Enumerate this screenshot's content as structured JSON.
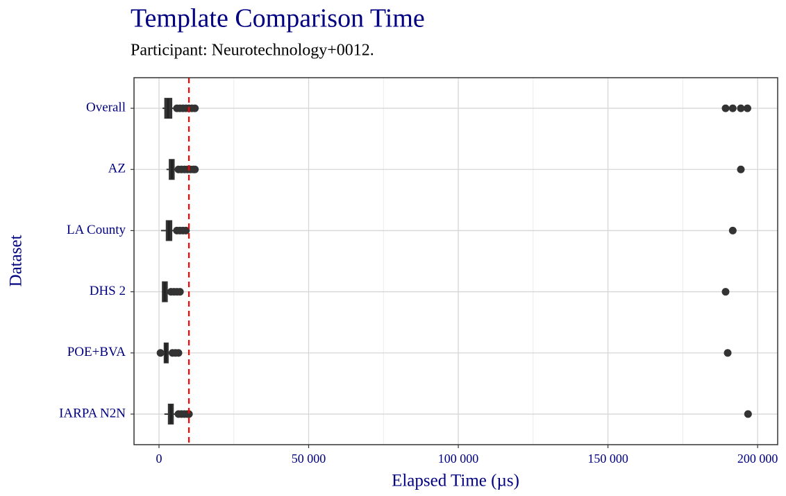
{
  "chart_data": {
    "type": "boxplot",
    "title": "Template Comparison Time",
    "subtitle": "Participant: Neurotechnology+0012.",
    "x_label": "Elapsed Time (µs)",
    "y_label": "Dataset",
    "categories": [
      "Overall",
      "AZ",
      "LA County",
      "DHS 2",
      "POE+BVA",
      "IARPA N2N"
    ],
    "boxes": [
      {
        "min": 1200,
        "q1": 2000,
        "median": 3000,
        "q3": 4200,
        "max": 5500,
        "outliers": [
          6000,
          7000,
          8000,
          9000,
          10000,
          11000,
          12000,
          189300,
          191700,
          194400,
          196600
        ]
      },
      {
        "min": 2500,
        "q1": 3500,
        "median": 4300,
        "q3": 5000,
        "max": 6000,
        "outliers": [
          6500,
          7500,
          8500,
          9500,
          10500,
          11500,
          12000,
          194400
        ]
      },
      {
        "min": 700,
        "q1": 2500,
        "median": 3300,
        "q3": 4200,
        "max": 5300,
        "outliers": [
          6000,
          7000,
          8000,
          9000,
          191700
        ]
      },
      {
        "min": 1000,
        "q1": 1200,
        "median": 1900,
        "q3": 2700,
        "max": 3700,
        "outliers": [
          4000,
          5000,
          6000,
          7000,
          189300
        ]
      },
      {
        "min": 300,
        "q1": 1800,
        "median": 2300,
        "q3": 3000,
        "max": 4000,
        "outliers": [
          500,
          4500,
          5500,
          6500,
          190000
        ]
      },
      {
        "min": 1800,
        "q1": 3200,
        "median": 4000,
        "q3": 4700,
        "max": 5600,
        "outliers": [
          6500,
          7500,
          8500,
          9500,
          10000,
          196800
        ]
      }
    ],
    "color": "#333333",
    "reference_line": {
      "value": 10000,
      "color": "#ff0000"
    },
    "xlim": [
      -8350,
      206700
    ],
    "xticks": [
      0,
      {
        "value": 50000,
        "label": "50 000"
      },
      {
        "value": 100000,
        "label": "100 000"
      },
      {
        "value": 150000,
        "label": "150 000"
      },
      {
        "value": 200000,
        "label": "200 000"
      }
    ],
    "xminorticks": [
      25000,
      75000,
      125000,
      175000
    ],
    "grid": true
  }
}
